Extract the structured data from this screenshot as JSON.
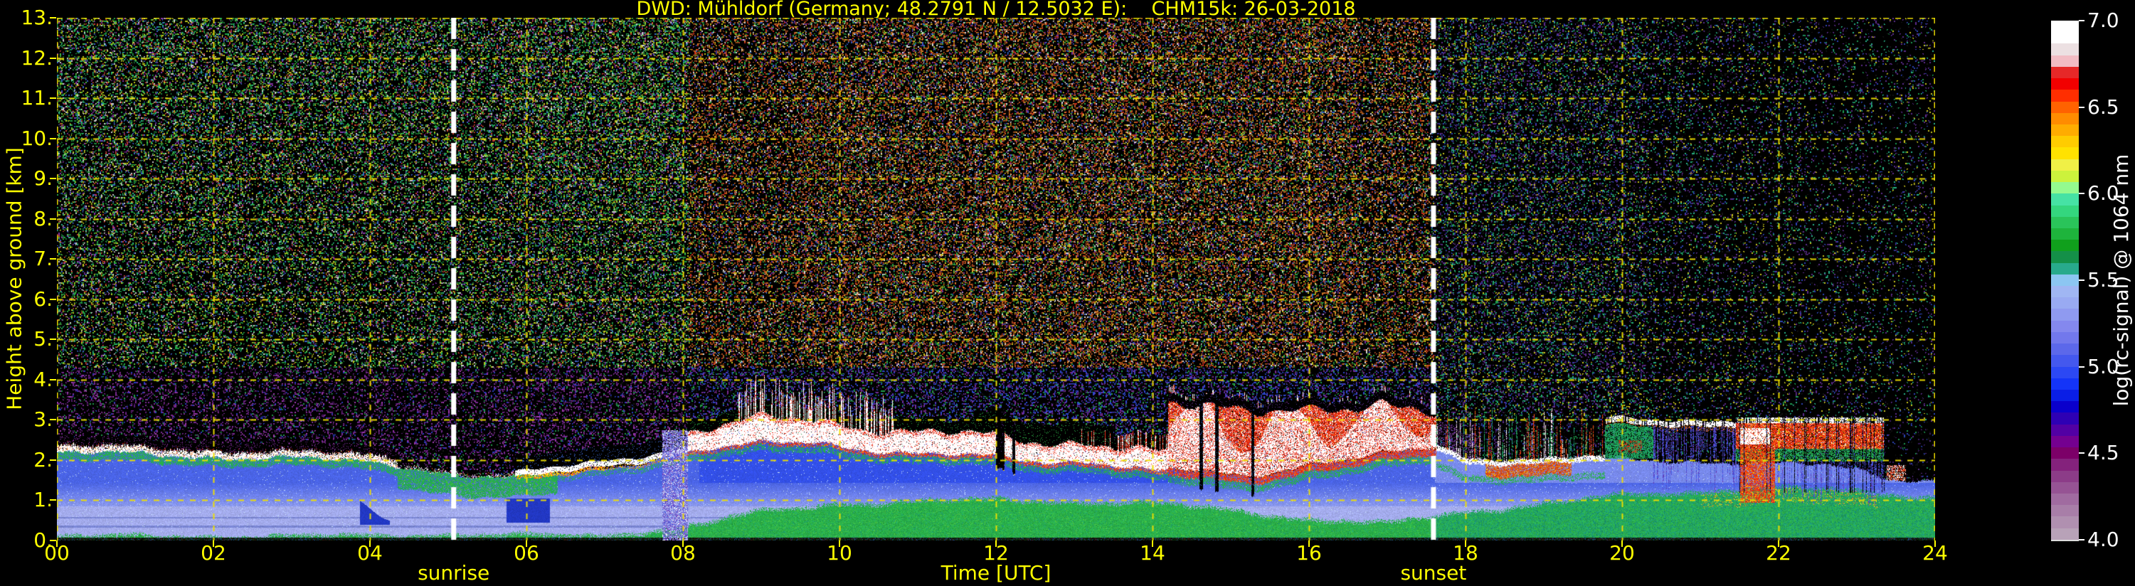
{
  "title": "DWD: Mühldorf (Germany; 48.2791 N / 12.5032 E):    CHM15k: 26-03-2018",
  "colors": {
    "background": "#000000",
    "axis_text": "#ffff00",
    "grid": "#f0e000",
    "annotation_line": "#ffffff",
    "colorbar_text": "#ffffff"
  },
  "chart_data": {
    "type": "heatmap",
    "title": "DWD: Mühldorf (Germany; 48.2791 N / 12.5032 E):    CHM15k: 26-03-2018",
    "xlabel": "Time [UTC]",
    "ylabel": "Height above ground [km]",
    "x_range_hours": [
      0,
      24
    ],
    "y_range_km": [
      0,
      13
    ],
    "grid": true,
    "x_tick_values": [
      0,
      2,
      4,
      6,
      8,
      10,
      12,
      14,
      16,
      18,
      20,
      22,
      24
    ],
    "x_tick_labels": [
      "00",
      "02",
      "04",
      "06",
      "08",
      "10",
      "12",
      "14",
      "16",
      "18",
      "20",
      "22",
      "24"
    ],
    "y_tick_values": [
      0,
      1,
      2,
      3,
      4,
      5,
      6,
      7,
      8,
      9,
      10,
      11,
      12,
      13
    ],
    "y_tick_labels": [
      "0.",
      "1.",
      "2.",
      "3.",
      "4.",
      "5.",
      "6.",
      "7.",
      "8.",
      "9.",
      "10.",
      "11.",
      "12.",
      "13."
    ],
    "annotations": {
      "sunrise": {
        "hour": 5.07,
        "label": "sunrise"
      },
      "sunset": {
        "hour": 17.59,
        "label": "sunset"
      }
    },
    "colorbar": {
      "label": "log(rc-signal) @ 1064 nm",
      "min": 4.0,
      "max": 7.0,
      "tick_values": [
        4.0,
        4.5,
        5.0,
        5.5,
        6.0,
        6.5,
        7.0
      ],
      "tick_labels": [
        "4.0",
        "4.5",
        "5.0",
        "5.5",
        "6.0",
        "6.5",
        "7.0"
      ],
      "colors_bottom_to_top": [
        "#b8a2b8",
        "#b090b0",
        "#a87ea8",
        "#a06ba0",
        "#965394",
        "#8c3c88",
        "#84227c",
        "#7c0068",
        "#740090",
        "#5200a4",
        "#2e00b4",
        "#0a00cc",
        "#0a1ee6",
        "#1434f8",
        "#2c48f4",
        "#4458ee",
        "#5c68ea",
        "#7278ec",
        "#8488ee",
        "#8f9af0",
        "#99aaf2",
        "#a0b6f3",
        "#8cc6f2",
        "#28aa8c",
        "#149048",
        "#10a01c",
        "#1eb43c",
        "#2ac45a",
        "#34d67e",
        "#46e2a4",
        "#94fa8e",
        "#ccf23c",
        "#f0f046",
        "#ffe200",
        "#ffcc00",
        "#ffac00",
        "#ff8c00",
        "#ff6200",
        "#ff2e00",
        "#f20000",
        "#e62828",
        "#f2bcc4",
        "#ece0e2",
        "#ffffff",
        "#ffffff"
      ]
    },
    "regimes": {
      "day_noise_start": 8.06,
      "day_noise_end": 17.6,
      "morning_column": [
        7.74,
        8.06
      ]
    },
    "layers": {
      "surface_green_top_km": {
        "hours": [
          0,
          1,
          2,
          3,
          4,
          5,
          6,
          7,
          8,
          9,
          10,
          11,
          12,
          13,
          14,
          15,
          16,
          17,
          18,
          19,
          20,
          21,
          22,
          23,
          24
        ],
        "values": [
          0.13,
          0.13,
          0.13,
          0.13,
          0.15,
          0.18,
          0.15,
          0.15,
          0.35,
          0.75,
          0.95,
          1.0,
          1.05,
          1.0,
          0.95,
          0.8,
          0.55,
          0.45,
          0.75,
          0.95,
          1.15,
          1.25,
          1.35,
          1.25,
          1.1
        ]
      },
      "blue_aerosol_top_km": {
        "hours": [
          0,
          1,
          2,
          3,
          4,
          4.6,
          5.2,
          5.9,
          6.5,
          7.2,
          8.0,
          8.5,
          9,
          9.7,
          10.3,
          11,
          12,
          12.6,
          13.2,
          14,
          14.6,
          15.2,
          16,
          16.6,
          17.3,
          17.62,
          18,
          19,
          19.8,
          20.5,
          21.5,
          22,
          22.6,
          23.1,
          23.4,
          24
        ],
        "values": [
          2.22,
          2.18,
          2.12,
          2.08,
          1.98,
          1.82,
          1.62,
          1.56,
          1.66,
          1.85,
          2.2,
          2.32,
          2.42,
          2.48,
          2.3,
          2.16,
          2.1,
          1.98,
          2.0,
          1.72,
          1.7,
          1.58,
          1.88,
          2.0,
          2.2,
          2.3,
          1.98,
          1.95,
          2.0,
          1.98,
          1.95,
          1.9,
          1.85,
          1.7,
          1.55,
          1.5
        ]
      }
    },
    "cloud_segments": [
      {
        "type": "speckle_top",
        "t0": 0.0,
        "t1": 4.35
      },
      {
        "type": "green_mass",
        "t0": 4.35,
        "t1": 6.4
      },
      {
        "type": "rising_streak",
        "t0": 5.85,
        "t1": 8.05
      },
      {
        "type": "thick_band",
        "t0": 8.05,
        "t1": 14.2,
        "notch_hours": [
          12.05,
          12.22
        ]
      },
      {
        "type": "storm",
        "t0": 14.2,
        "t1": 17.62,
        "gap_hours": [
          14.62,
          14.82,
          15.28
        ]
      },
      {
        "type": "thin_layer_columns",
        "t0": 17.62,
        "t1": 19.78
      },
      {
        "type": "high_streak_virga",
        "t0": 19.78,
        "t1": 21.45,
        "level_km": 2.95
      },
      {
        "type": "red_band_columns",
        "t0": 21.45,
        "t1": 23.35,
        "base_km": 2.28,
        "top_km": 2.92
      },
      {
        "type": "sparse_blob",
        "t0": 23.38,
        "t1": 23.62,
        "base_km": 1.5,
        "top_km": 1.88
      }
    ],
    "noise_palettes": {
      "night_high": [
        "#22a844",
        "#22a844",
        "#55c040",
        "#b8c81e",
        "#b8c81e",
        "#28b484",
        "#3a62c8",
        "#8834a8",
        "#c84030",
        "#cccccc",
        "#1e7838"
      ],
      "night_low": [
        "#7a2a92",
        "#7a2a92",
        "#5c1a78",
        "#a03cb0",
        "#2a3cc0",
        "#20984a",
        "#181818",
        "#7a2a92"
      ],
      "day_high": [
        "#b05020",
        "#b05020",
        "#c86418",
        "#cc2e1e",
        "#e08a30",
        "#2aa040",
        "#2aa040",
        "#c8c41e",
        "#3060c8",
        "#7030a0",
        "#d8d8d8",
        "#b05020"
      ],
      "day_low": [
        "#3048d0",
        "#3048d0",
        "#5c34b0",
        "#22a048",
        "#7a2a92",
        "#101010"
      ],
      "evening_high": [
        "#5c2c8c",
        "#5c2c8c",
        "#2c44b4",
        "#1e9850",
        "#28b088",
        "#141414",
        "#c8c41e"
      ],
      "evening_low": [
        "#5c2c8c",
        "#3c1c64",
        "#2c44b4",
        "#1e9850",
        "#101010",
        "#101010"
      ],
      "morning_column": [
        "#8894ea",
        "#6a70dc",
        "#8a58c8",
        "#4050d8",
        "#aab4f0",
        "#ffffff",
        "#7040b0"
      ]
    },
    "structure_colors": {
      "lavender": "#a4aced",
      "mid_blue": "#8c9aee",
      "deep_blue": "#4a64e6",
      "day_blue": "#3350e8",
      "dark_blue_cloud": "#2238c4",
      "surface_green": "#2cb24c",
      "teal": "#1e9e78",
      "white": "#ffffff",
      "red": "#e42810",
      "orange": "#ff7818",
      "yellow": "#ffd000"
    }
  }
}
